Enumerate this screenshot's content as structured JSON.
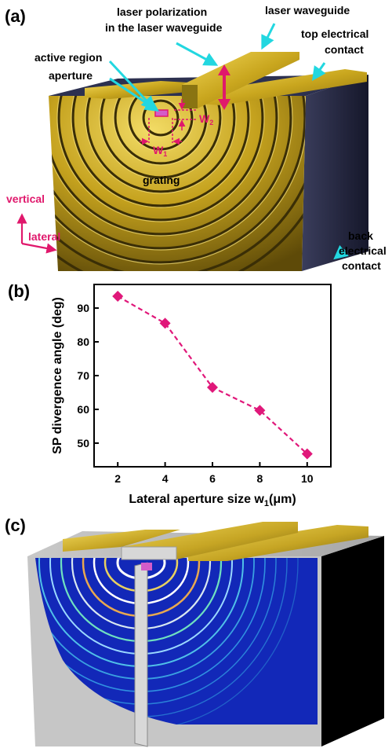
{
  "panel_a": {
    "label": "(a)",
    "annotations": {
      "laser_polarization_line1": "laser polarization",
      "laser_polarization_line2": "in the laser waveguide",
      "laser_waveguide": "laser waveguide",
      "top_contact_line1": "top electrical",
      "top_contact_line2": "contact",
      "active_region": "active region",
      "aperture": "aperture",
      "grating": "grating",
      "back_contact_line1": "back",
      "back_contact_line2": "electrical",
      "back_contact_line3": "contact",
      "vertical": "vertical",
      "lateral": "lateral",
      "w1": "W",
      "w1_sub": "1",
      "w2": "W",
      "w2_sub": "2"
    }
  },
  "panel_b": {
    "label": "(b)"
  },
  "panel_c": {
    "label": "(c)"
  },
  "chart_data": {
    "type": "scatter",
    "x": [
      2,
      4,
      6,
      8,
      10
    ],
    "y": [
      93.5,
      85.5,
      66.5,
      59.7,
      46.8
    ],
    "xlabel_main": "Lateral aperture size w",
    "xlabel_sub": "1",
    "xlabel_unit": "(μm)",
    "ylabel": "SP divergence angle (deg)",
    "xticks": [
      2,
      4,
      6,
      8,
      10
    ],
    "yticks": [
      50,
      60,
      70,
      80,
      90
    ],
    "xlim": [
      1,
      11
    ],
    "ylim": [
      43,
      97
    ],
    "marker_color": "#e0187a",
    "line_style": "dashed",
    "grid": false
  },
  "colors": {
    "pink": "#e0186c",
    "cyan": "#22d7e0",
    "gold": "#c9a920",
    "gold_light": "#e8c938",
    "navy": "#262a44",
    "field_blue": "#1228b8"
  }
}
